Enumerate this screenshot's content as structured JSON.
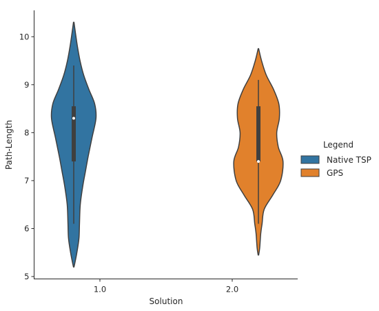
{
  "chart_data": {
    "type": "violin",
    "xlabel": "Solution",
    "ylabel": "Path-Length",
    "categories": [
      "1.0",
      "2.0"
    ],
    "ylim": [
      4.95,
      10.55
    ],
    "yticks": [
      "5",
      "6",
      "7",
      "8",
      "9",
      "10"
    ],
    "grid": false,
    "legend": {
      "title": "Legend",
      "placement": "right",
      "entries": [
        {
          "label": "Native TSP",
          "color": "#3274a1"
        },
        {
          "label": "GPS",
          "color": "#e1812c"
        }
      ]
    },
    "series": [
      {
        "name": "Native TSP",
        "category": "1.0",
        "side": "left",
        "color": "#3274a1",
        "median": 8.3,
        "q1": 7.4,
        "q3": 8.55,
        "whisker_low": 6.1,
        "whisker_high": 9.4,
        "density": [
          [
            5.2,
            0.01
          ],
          [
            5.3,
            0.05
          ],
          [
            5.5,
            0.12
          ],
          [
            5.8,
            0.2
          ],
          [
            6.1,
            0.22
          ],
          [
            6.5,
            0.25
          ],
          [
            6.9,
            0.35
          ],
          [
            7.2,
            0.45
          ],
          [
            7.5,
            0.55
          ],
          [
            7.9,
            0.7
          ],
          [
            8.3,
            0.85
          ],
          [
            8.6,
            0.8
          ],
          [
            8.9,
            0.58
          ],
          [
            9.2,
            0.38
          ],
          [
            9.5,
            0.24
          ],
          [
            9.8,
            0.14
          ],
          [
            10.1,
            0.06
          ],
          [
            10.3,
            0.01
          ]
        ]
      },
      {
        "name": "GPS",
        "category": "2.0",
        "side": "right",
        "color": "#e1812c",
        "median": 7.4,
        "q1": 7.4,
        "q3": 8.55,
        "whisker_low": 6.1,
        "whisker_high": 9.1,
        "density": [
          [
            5.45,
            0.01
          ],
          [
            5.6,
            0.05
          ],
          [
            5.9,
            0.09
          ],
          [
            6.1,
            0.14
          ],
          [
            6.4,
            0.22
          ],
          [
            6.7,
            0.55
          ],
          [
            7.0,
            0.85
          ],
          [
            7.4,
            0.94
          ],
          [
            7.7,
            0.76
          ],
          [
            8.0,
            0.7
          ],
          [
            8.3,
            0.8
          ],
          [
            8.6,
            0.78
          ],
          [
            8.9,
            0.58
          ],
          [
            9.2,
            0.3
          ],
          [
            9.5,
            0.12
          ],
          [
            9.75,
            0.01
          ]
        ]
      }
    ]
  }
}
